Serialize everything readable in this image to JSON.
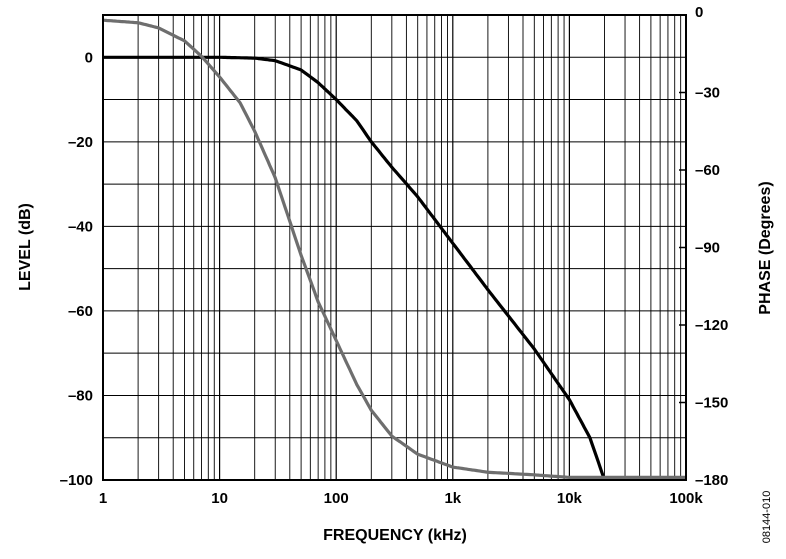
{
  "chart_data": {
    "type": "line",
    "title": "",
    "xlabel": "FREQUENCY (kHz)",
    "ylabel_left": "LEVEL (dB)",
    "ylabel_right": "PHASE (Degrees)",
    "x_scale": "log",
    "xlim": [
      1,
      100000
    ],
    "ylim_left": [
      -100,
      10
    ],
    "ylim_right": [
      -180,
      0
    ],
    "grid": true,
    "x_ticks": [
      {
        "value": 1,
        "label": "1"
      },
      {
        "value": 10,
        "label": "10"
      },
      {
        "value": 100,
        "label": "100"
      },
      {
        "value": 1000,
        "label": "1k"
      },
      {
        "value": 10000,
        "label": "10k"
      },
      {
        "value": 100000,
        "label": "100k"
      }
    ],
    "y_ticks_left": [
      {
        "value": 0,
        "label": "0"
      },
      {
        "value": -20,
        "label": "–20"
      },
      {
        "value": -40,
        "label": "–40"
      },
      {
        "value": -60,
        "label": "–60"
      },
      {
        "value": -80,
        "label": "–80"
      },
      {
        "value": -100,
        "label": "–100"
      }
    ],
    "y_ticks_right": [
      {
        "value": 0,
        "label": "0"
      },
      {
        "value": -30,
        "label": "–30"
      },
      {
        "value": -60,
        "label": "–60"
      },
      {
        "value": -90,
        "label": "–90"
      },
      {
        "value": -120,
        "label": "–120"
      },
      {
        "value": -150,
        "label": "–150"
      },
      {
        "value": -180,
        "label": "–180"
      }
    ],
    "series": [
      {
        "name": "Level",
        "axis": "left",
        "color": "#000000",
        "x": [
          1,
          10,
          20,
          30,
          50,
          70,
          100,
          150,
          200,
          300,
          500,
          1000,
          2000,
          5000,
          10000,
          15000,
          20000
        ],
        "y": [
          0,
          0,
          -0.2,
          -0.8,
          -3,
          -6,
          -10,
          -15,
          -20,
          -26,
          -33,
          -44,
          -55,
          -69,
          -81,
          -90,
          -100
        ]
      },
      {
        "name": "Phase",
        "axis": "right",
        "color": "#6e6e6e",
        "x": [
          1,
          2,
          3,
          5,
          7,
          10,
          15,
          20,
          30,
          50,
          70,
          100,
          150,
          200,
          300,
          500,
          1000,
          2000,
          5000,
          10000,
          100000
        ],
        "y": [
          -2,
          -3,
          -5,
          -10,
          -16,
          -24,
          -34,
          -45,
          -63,
          -93,
          -111,
          -126,
          -143,
          -153,
          -163,
          -170,
          -175,
          -177,
          -178,
          -179,
          -179
        ]
      }
    ]
  },
  "figure_id": "08144-010"
}
